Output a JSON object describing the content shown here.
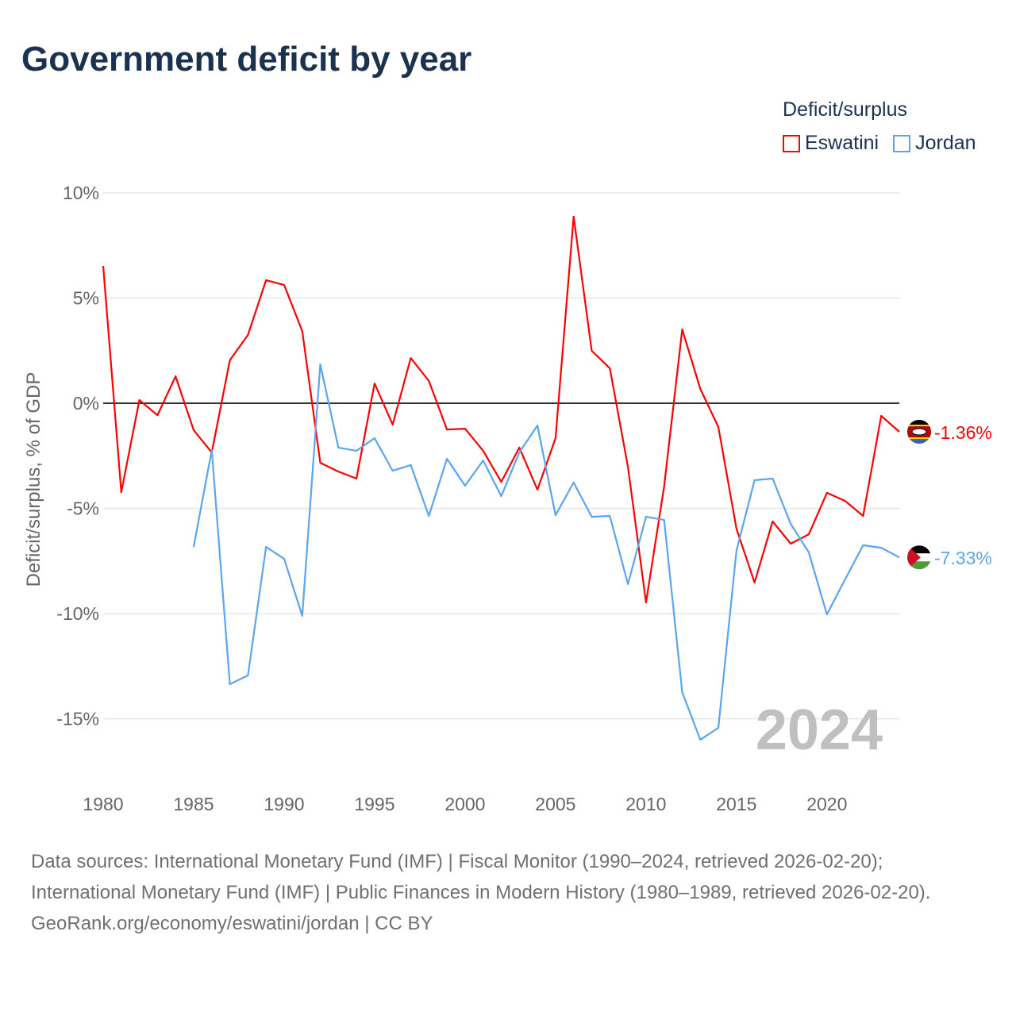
{
  "title": "Government deficit by year",
  "legend": {
    "title": "Deficit/surplus",
    "items": [
      {
        "name": "Eswatini",
        "color": "#ff0000"
      },
      {
        "name": "Jordan",
        "color": "#5aa5ef"
      }
    ]
  },
  "watermark_year": "2024",
  "footer": {
    "sources": "Data sources: International Monetary Fund (IMF) | Fiscal Monitor (1990–2024, retrieved 2026-02-20); International Monetary Fund (IMF) | Public Finances in Modern History (1980–1989, retrieved 2026-02-20).",
    "credit": "GeoRank.org/economy/eswatini/jordan | CC BY"
  },
  "chart_data": {
    "type": "line",
    "title": "Government deficit by year",
    "xlabel": "",
    "ylabel": "Deficit/surplus, % of GDP",
    "xlim": [
      1980,
      2024
    ],
    "ylim": [
      -17,
      10
    ],
    "xticks": [
      1980,
      1985,
      1990,
      1995,
      2000,
      2005,
      2010,
      2015,
      2020
    ],
    "xtick_labels": [
      "1980",
      "1985",
      "1990",
      "1995",
      "2000",
      "2005",
      "2010",
      "2015",
      "2020"
    ],
    "yticks": [
      10,
      5,
      0,
      -5,
      -10,
      -15
    ],
    "ytick_labels": [
      "10%",
      "5%",
      "0%",
      "-5%",
      "-10%",
      "-15%"
    ],
    "grid": true,
    "legend_position": "top-right",
    "series": [
      {
        "name": "Eswatini",
        "color": "#ff0000",
        "end_label": "-1.36%",
        "x": [
          1980,
          1981,
          1982,
          1983,
          1984,
          1985,
          1986,
          1987,
          1988,
          1989,
          1990,
          1991,
          1992,
          1993,
          1994,
          1995,
          1996,
          1997,
          1998,
          1999,
          2000,
          2001,
          2002,
          2003,
          2004,
          2005,
          2006,
          2007,
          2008,
          2009,
          2010,
          2011,
          2012,
          2013,
          2014,
          2015,
          2016,
          2017,
          2018,
          2019,
          2020,
          2021,
          2022,
          2023,
          2024
        ],
        "values": [
          6.53,
          -4.23,
          0.15,
          -0.57,
          1.28,
          -1.28,
          -2.34,
          2.04,
          3.25,
          5.85,
          5.62,
          3.43,
          -2.83,
          -3.25,
          -3.58,
          0.94,
          -1.02,
          2.15,
          1.06,
          -1.25,
          -1.21,
          -2.26,
          -3.74,
          -2.11,
          -4.11,
          -1.66,
          8.87,
          2.49,
          1.66,
          -3.02,
          -9.47,
          -3.96,
          3.51,
          0.68,
          -1.13,
          -5.96,
          -8.53,
          -5.62,
          -6.68,
          -6.23,
          -4.26,
          -4.64,
          -5.36,
          -0.6,
          -1.36
        ]
      },
      {
        "name": "Jordan",
        "color": "#5aa5ef",
        "end_label": "-7.33%",
        "x": [
          1985,
          1986,
          1987,
          1988,
          1989,
          1990,
          1991,
          1992,
          1993,
          1994,
          1995,
          1996,
          1997,
          1998,
          1999,
          2000,
          2001,
          2002,
          2003,
          2004,
          2005,
          2006,
          2007,
          2008,
          2009,
          2010,
          2011,
          2012,
          2013,
          2014,
          2015,
          2016,
          2017,
          2018,
          2019,
          2020,
          2021,
          2022,
          2023,
          2024
        ],
        "values": [
          -6.83,
          -2.23,
          -13.36,
          -12.94,
          -6.83,
          -7.4,
          -10.11,
          1.85,
          -2.11,
          -2.26,
          -1.66,
          -3.21,
          -2.94,
          -5.36,
          -2.64,
          -3.92,
          -2.72,
          -4.42,
          -2.34,
          -1.06,
          -5.32,
          -3.77,
          -5.4,
          -5.36,
          -8.6,
          -5.4,
          -5.55,
          -13.74,
          -16.0,
          -15.43,
          -7.02,
          -3.66,
          -3.58,
          -5.74,
          -7.09,
          -10.04,
          -8.38,
          -6.75,
          -6.87,
          -7.33
        ]
      }
    ]
  }
}
